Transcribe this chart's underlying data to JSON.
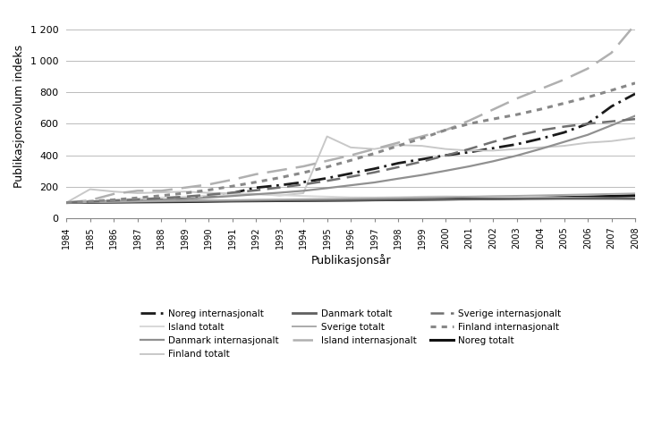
{
  "years": [
    1984,
    1985,
    1986,
    1987,
    1988,
    1989,
    1990,
    1991,
    1992,
    1993,
    1994,
    1995,
    1996,
    1997,
    1998,
    1999,
    2000,
    2001,
    2002,
    2003,
    2004,
    2005,
    2006,
    2007,
    2008
  ],
  "series": {
    "Noreg internasjonalt": [
      100,
      105,
      108,
      112,
      118,
      125,
      140,
      160,
      195,
      210,
      230,
      255,
      285,
      315,
      350,
      375,
      400,
      420,
      445,
      470,
      505,
      545,
      600,
      710,
      790
    ],
    "Finland totalt": [
      100,
      185,
      170,
      160,
      165,
      170,
      162,
      158,
      155,
      145,
      160,
      520,
      450,
      440,
      465,
      460,
      440,
      430,
      430,
      440,
      450,
      460,
      480,
      490,
      510
    ],
    "Island internasjonalt": [
      100,
      115,
      155,
      175,
      175,
      195,
      215,
      245,
      280,
      305,
      330,
      365,
      400,
      440,
      480,
      520,
      560,
      620,
      690,
      760,
      820,
      880,
      950,
      1050,
      1230
    ],
    "Noreg totalt": [
      100,
      102,
      103,
      104,
      105,
      106,
      108,
      110,
      111,
      112,
      113,
      114,
      115,
      117,
      118,
      120,
      122,
      124,
      126,
      128,
      130,
      133,
      136,
      140,
      145
    ],
    "Island totalt": [
      100,
      110,
      118,
      125,
      132,
      138,
      145,
      150,
      152,
      148,
      142,
      138,
      134,
      133,
      135,
      138,
      140,
      138,
      136,
      134,
      132,
      132,
      130,
      128,
      126
    ],
    "Danmark totalt": [
      100,
      102,
      104,
      106,
      108,
      109,
      111,
      112,
      113,
      114,
      115,
      116,
      117,
      118,
      119,
      120,
      121,
      122,
      123,
      124,
      125,
      126,
      126,
      126,
      125
    ],
    "Danmark internasjonalt": [
      100,
      104,
      108,
      112,
      118,
      124,
      132,
      142,
      153,
      163,
      175,
      192,
      210,
      228,
      252,
      275,
      302,
      330,
      362,
      398,
      440,
      485,
      530,
      590,
      650
    ],
    "Sverige totalt": [
      100,
      103,
      105,
      108,
      110,
      112,
      114,
      116,
      118,
      120,
      122,
      124,
      126,
      128,
      130,
      133,
      135,
      138,
      141,
      143,
      146,
      149,
      152,
      155,
      158
    ],
    "Sverige internasjonalt": [
      100,
      106,
      113,
      120,
      128,
      138,
      150,
      163,
      178,
      196,
      215,
      238,
      264,
      292,
      325,
      360,
      398,
      440,
      485,
      525,
      558,
      582,
      600,
      615,
      630
    ],
    "Finland internasjonalt": [
      100,
      108,
      118,
      130,
      144,
      160,
      180,
      204,
      230,
      258,
      290,
      326,
      368,
      412,
      460,
      508,
      560,
      600,
      630,
      658,
      692,
      730,
      768,
      812,
      858
    ]
  },
  "line_configs": {
    "Noreg internasjonalt": {
      "color": "#1a1a1a",
      "linestyle": "dashdot",
      "linewidth": 2.0
    },
    "Finland totalt": {
      "color": "#c8c8c8",
      "linestyle": "solid",
      "linewidth": 1.4
    },
    "Island internasjonalt": {
      "color": "#b0b0b0",
      "linestyle": "dashed",
      "linewidth": 1.8
    },
    "Noreg totalt": {
      "color": "#111111",
      "linestyle": "solid",
      "linewidth": 2.2
    },
    "Island totalt": {
      "color": "#d8d8d8",
      "linestyle": "solid",
      "linewidth": 1.4
    },
    "Danmark totalt": {
      "color": "#606060",
      "linestyle": "solid",
      "linewidth": 2.0
    },
    "Danmark internasjonalt": {
      "color": "#909090",
      "linestyle": "solid",
      "linewidth": 1.6
    },
    "Sverige totalt": {
      "color": "#aaaaaa",
      "linestyle": "solid",
      "linewidth": 1.4
    },
    "Sverige internasjonalt": {
      "color": "#707070",
      "linestyle": "dashed",
      "linewidth": 1.8
    },
    "Finland internasjonalt": {
      "color": "#888888",
      "linestyle": "dotted",
      "linewidth": 2.2
    }
  },
  "ylabel": "Publikasjonsvolum indeks",
  "xlabel": "Publikasjonsår",
  "ylim": [
    0,
    1300
  ],
  "yticks": [
    0,
    200,
    400,
    600,
    800,
    1000,
    1200
  ],
  "ytick_labels": [
    "0",
    "200",
    "400",
    "600",
    "800",
    "1 000",
    "1 200"
  ],
  "legend_order": [
    "Noreg internasjonalt",
    "Island totalt",
    "Danmark internasjonalt",
    "Finland totalt",
    "Danmark totalt",
    "Sverige totalt",
    "Island internasjonalt",
    "Sverige internasjonalt",
    "Finland internasjonalt",
    "Noreg totalt"
  ]
}
